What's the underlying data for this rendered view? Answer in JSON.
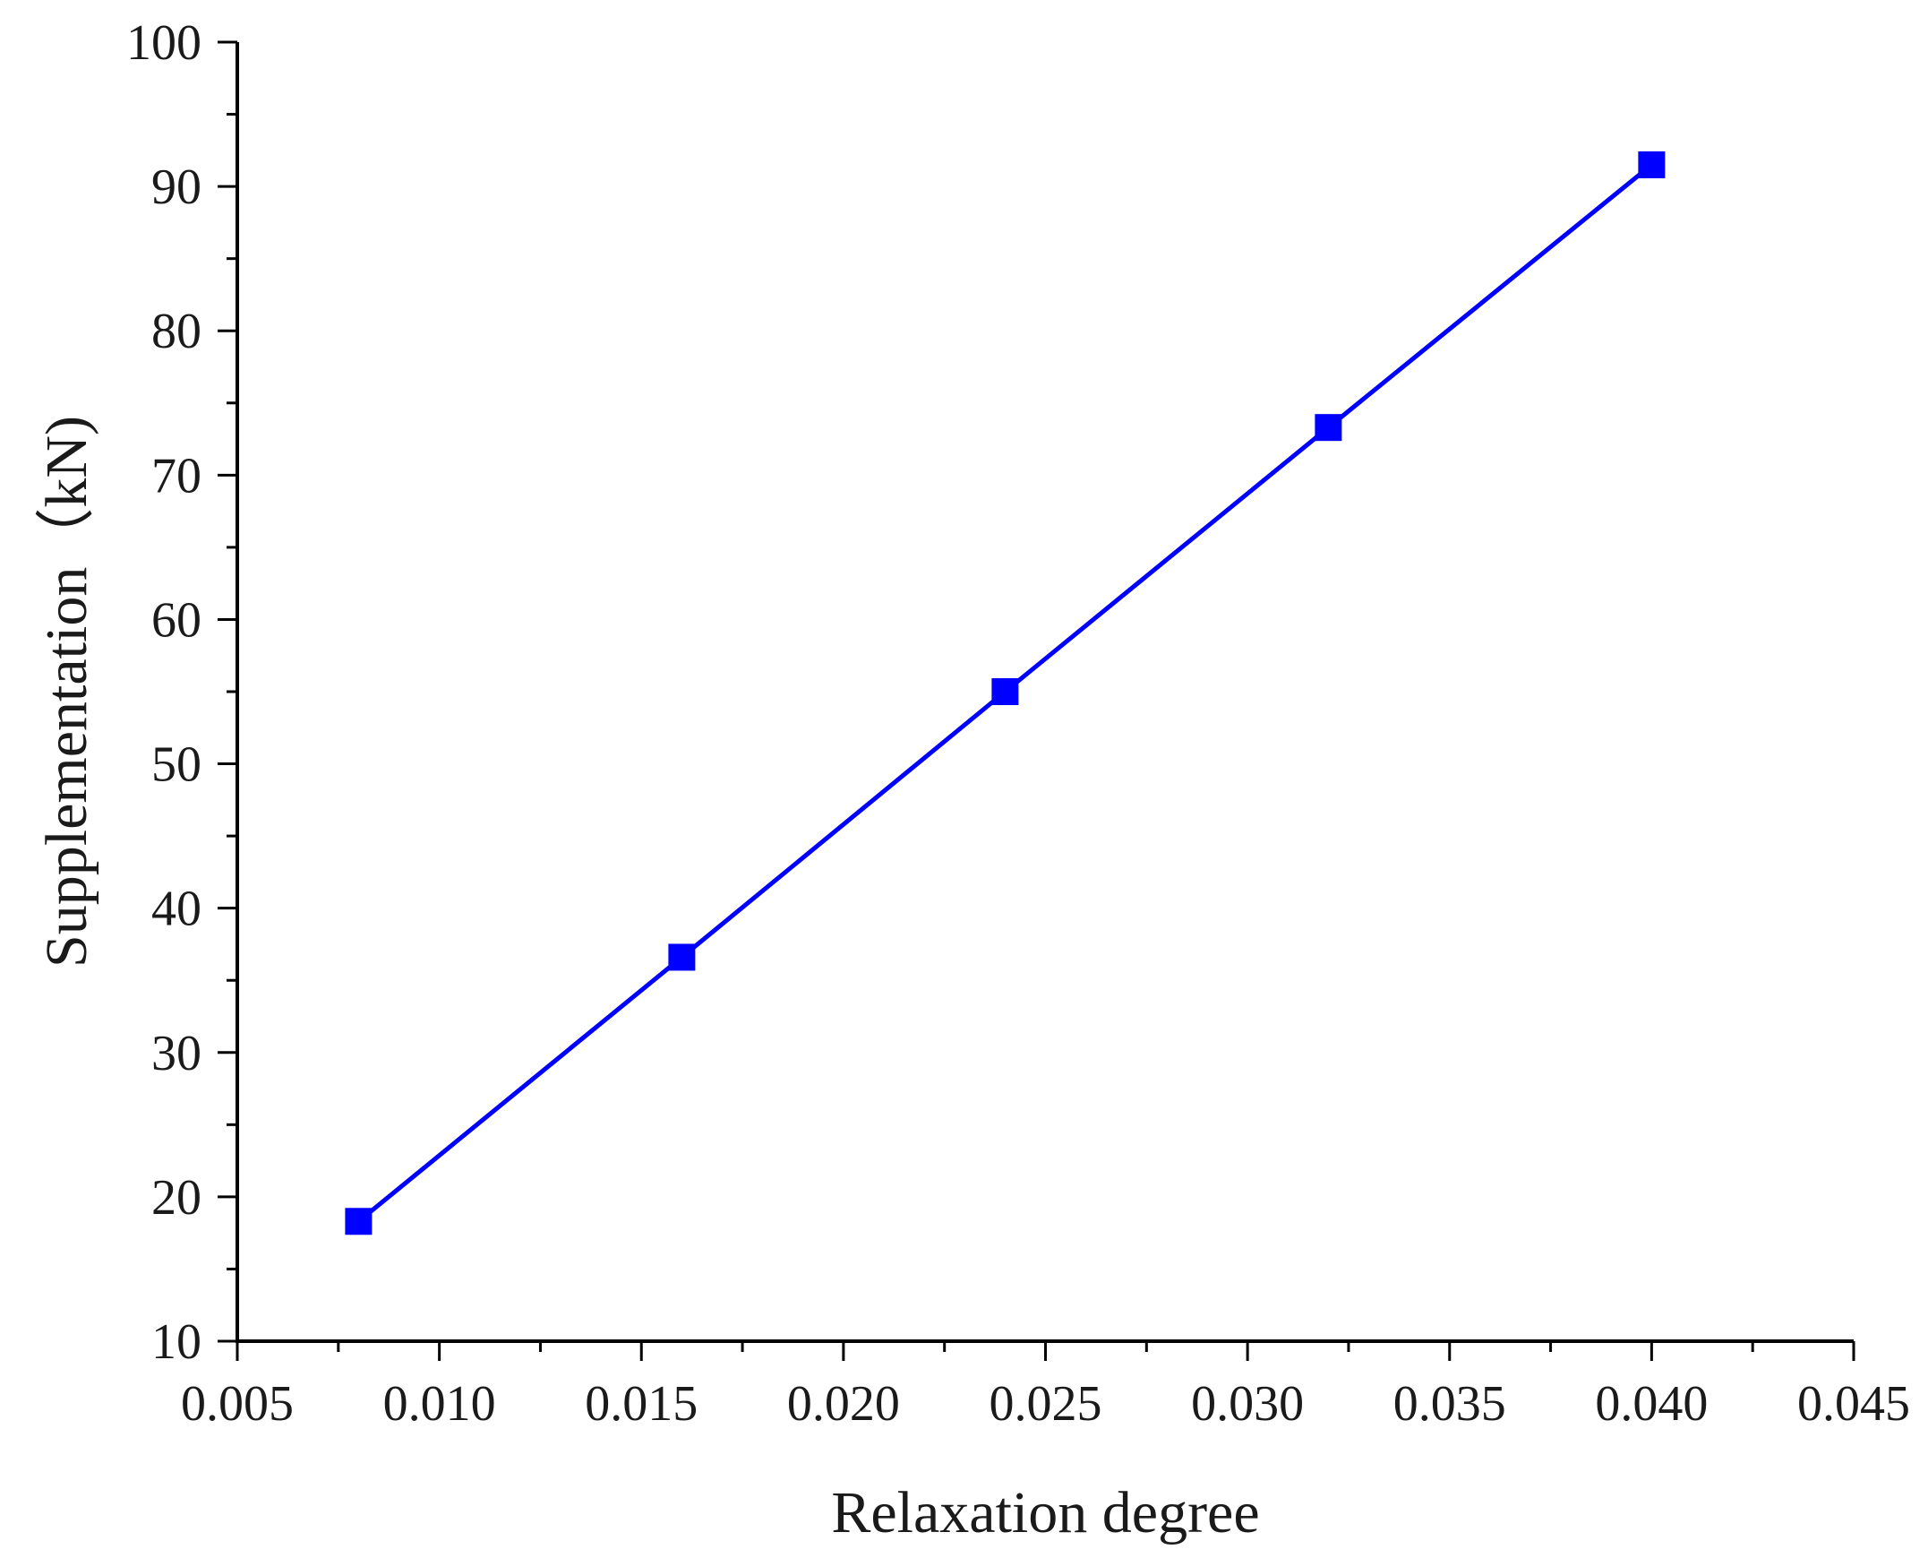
{
  "chart_data": {
    "type": "line",
    "title": "",
    "xlabel": "Relaxation degree",
    "ylabel": "Supplementation（kN)",
    "xlim": [
      0.005,
      0.045
    ],
    "ylim": [
      10,
      100
    ],
    "x_ticks": [
      "0.005",
      "0.010",
      "0.015",
      "0.020",
      "0.025",
      "0.030",
      "0.035",
      "0.040",
      "0.045"
    ],
    "y_ticks": [
      "10",
      "20",
      "30",
      "40",
      "50",
      "60",
      "70",
      "80",
      "90",
      "100"
    ],
    "grid": false,
    "legend": "none",
    "series": [
      {
        "x": [
          0.008,
          0.016,
          0.024,
          0.032,
          0.04
        ],
        "y": [
          18.3,
          36.6,
          55.0,
          73.3,
          91.5
        ],
        "color": "#0000ff",
        "marker": "square"
      }
    ]
  }
}
